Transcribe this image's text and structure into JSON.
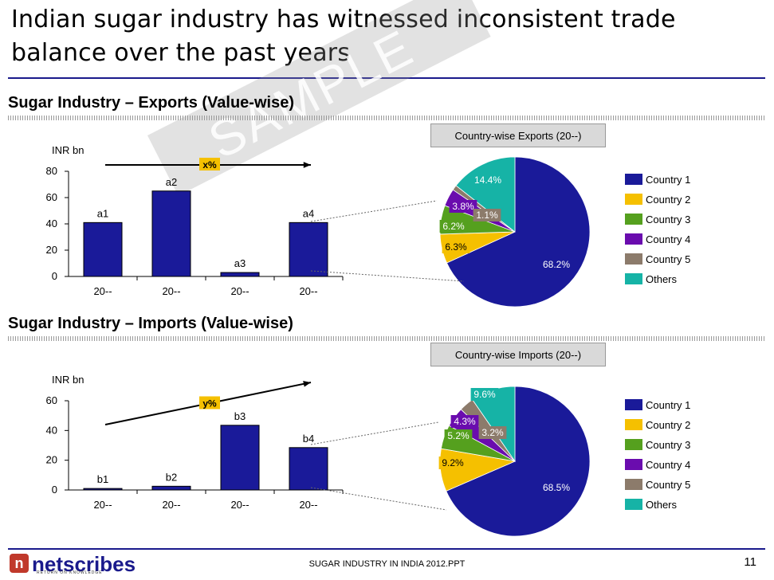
{
  "title": "Indian sugar industry has witnessed inconsistent trade balance over the past years",
  "watermark": "SAMPLE",
  "footer": {
    "center": "SUGAR INDUSTRY IN INDIA 2012.PPT",
    "page": "11",
    "logo": "netscribes",
    "logo_tagline": "RETURN ON KNOWLEDGE"
  },
  "colors": {
    "bar": "#1a1a99",
    "c1": "#1a1a99",
    "c2": "#f5c000",
    "c3": "#55a01e",
    "c4": "#6a0cae",
    "c5": "#8c7b6b",
    "others": "#16b3a6"
  },
  "chart_data": [
    {
      "type": "bar",
      "section_title": "Sugar Industry – Exports (Value-wise)",
      "unit_label": "INR bn",
      "categories": [
        "20--",
        "20--",
        "20--",
        "20--"
      ],
      "values": [
        41,
        65,
        3,
        41
      ],
      "data_labels": [
        "a1",
        "a2",
        "a3",
        "a4"
      ],
      "ylim": [
        0,
        80
      ],
      "yticks": [
        0,
        20,
        40,
        60,
        80
      ],
      "growth_label": "x%"
    },
    {
      "type": "pie",
      "title": "Country-wise Exports (20--)",
      "labels": [
        "Country 1",
        "Country 2",
        "Country 3",
        "Country 4",
        "Country 5",
        "Others"
      ],
      "values": [
        68.2,
        6.3,
        6.2,
        3.8,
        1.1,
        14.4
      ],
      "value_labels": [
        "68.2%",
        "6.3%",
        "6.2%",
        "3.8%",
        "1.1%",
        "14.4%"
      ]
    },
    {
      "type": "bar",
      "section_title": "Sugar Industry – Imports (Value-wise)",
      "unit_label": "INR bn",
      "categories": [
        "20--",
        "20--",
        "20--",
        "20--"
      ],
      "values": [
        1,
        2.5,
        43.5,
        28.5
      ],
      "data_labels": [
        "b1",
        "b2",
        "b3",
        "b4"
      ],
      "ylim": [
        0,
        60
      ],
      "yticks": [
        0,
        20,
        40,
        60
      ],
      "growth_label": "y%"
    },
    {
      "type": "pie",
      "title": "Country-wise Imports (20--)",
      "labels": [
        "Country 1",
        "Country 2",
        "Country 3",
        "Country 4",
        "Country 5",
        "Others"
      ],
      "values": [
        68.5,
        9.2,
        5.2,
        4.3,
        3.2,
        9.6
      ],
      "value_labels": [
        "68.5%",
        "9.2%",
        "5.2%",
        "4.3%",
        "3.2%",
        "9.6%"
      ]
    }
  ]
}
